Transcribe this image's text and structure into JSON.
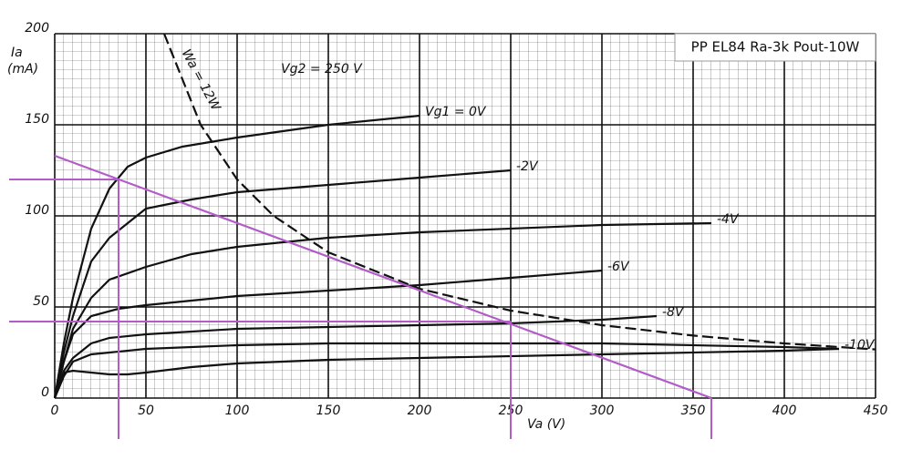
{
  "chart_data": {
    "type": "line",
    "title": "PP EL84 Ra-3k Pout-10W",
    "ylabel": "Ia",
    "yunit": "(mA)",
    "xlabel": "Va (V)",
    "annotations": [
      "Vg2 = 250 V",
      "Wa = 12W"
    ],
    "xlim": [
      0,
      450
    ],
    "ylim": [
      0,
      200
    ],
    "xticks": [
      0,
      50,
      100,
      150,
      200,
      250,
      300,
      350,
      400,
      450
    ],
    "yticks": [
      0,
      50,
      100,
      150,
      200
    ],
    "grid": true,
    "series": [
      {
        "name": "Vg1 = 0V",
        "color": "#111111",
        "x": [
          0,
          5,
          10,
          20,
          30,
          40,
          50,
          70,
          100,
          150,
          200
        ],
        "values": [
          0,
          30,
          55,
          93,
          115,
          127,
          132,
          138,
          143,
          150,
          155
        ]
      },
      {
        "name": "-2V",
        "color": "#111111",
        "x": [
          0,
          5,
          10,
          20,
          30,
          40,
          50,
          75,
          100,
          150,
          200,
          250
        ],
        "values": [
          0,
          25,
          45,
          75,
          88,
          96,
          104,
          109,
          113,
          117,
          121,
          125
        ]
      },
      {
        "name": "-4V",
        "color": "#111111",
        "x": [
          0,
          5,
          10,
          20,
          30,
          50,
          75,
          100,
          150,
          200,
          300,
          360
        ],
        "values": [
          0,
          20,
          38,
          55,
          65,
          72,
          79,
          83,
          88,
          91,
          95,
          96
        ]
      },
      {
        "name": "-6V",
        "color": "#111111",
        "x": [
          0,
          5,
          10,
          20,
          35,
          50,
          100,
          150,
          200,
          250,
          300
        ],
        "values": [
          0,
          20,
          35,
          45,
          49,
          51,
          56,
          59,
          62,
          66,
          70
        ]
      },
      {
        "name": "-8V",
        "color": "#111111",
        "x": [
          0,
          5,
          10,
          20,
          30,
          50,
          100,
          150,
          200,
          250,
          300,
          330
        ],
        "values": [
          0,
          15,
          22,
          30,
          33,
          35,
          38,
          39,
          40,
          41,
          43,
          45
        ]
      },
      {
        "name": "-10V",
        "color": "#111111",
        "x": [
          0,
          5,
          10,
          20,
          30,
          50,
          100,
          150,
          200,
          300,
          400,
          430
        ],
        "values": [
          0,
          12,
          20,
          24,
          25,
          27,
          29,
          30,
          30,
          30,
          28,
          27
        ]
      },
      {
        "name": null,
        "color": "#111111",
        "x": [
          0,
          5,
          10,
          20,
          30,
          40,
          50,
          75,
          100,
          150,
          200,
          300,
          400,
          430
        ],
        "values": [
          0,
          14,
          15,
          14,
          13,
          13,
          14,
          17,
          19,
          21,
          22,
          24,
          26,
          27
        ]
      },
      {
        "color": "#111111",
        "dashed": true,
        "x": [
          60,
          80,
          100,
          120,
          150,
          200,
          250,
          300,
          350,
          400,
          450
        ],
        "values": [
          200,
          150,
          120,
          100,
          80,
          60,
          48,
          40,
          34.3,
          30,
          26.7
        ]
      },
      {
        "color": "#b35cc9",
        "x": [
          0,
          360
        ],
        "values": [
          133,
          0
        ]
      }
    ],
    "guides": {
      "color": "#b35cc9",
      "x": [
        35,
        250,
        360
      ],
      "values": [
        120,
        42,
        0
      ]
    }
  }
}
